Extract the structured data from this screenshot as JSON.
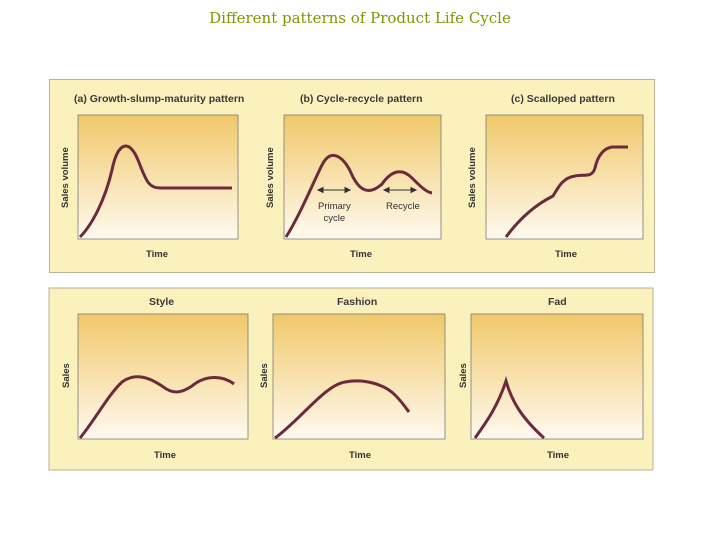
{
  "title": "Different patterns of Product Life Cycle",
  "top_panels": {
    "a_title": "(a) Growth-slump-maturity pattern",
    "b_title": "(b) Cycle-recycle pattern",
    "c_title": "(c) Scalloped pattern",
    "y_label": "Sales volume",
    "x_label": "Time",
    "b_primary": "Primary\ncycle",
    "b_recycle": "Recycle"
  },
  "bottom_panels": {
    "style_title": "Style",
    "fashion_title": "Fashion",
    "fad_title": "Fad",
    "y_label": "Sales",
    "x_label": "Time"
  },
  "colors": {
    "curve": "#6b2b3c",
    "panel_bg": "#fbf1bd",
    "title": "#7a9a00"
  }
}
